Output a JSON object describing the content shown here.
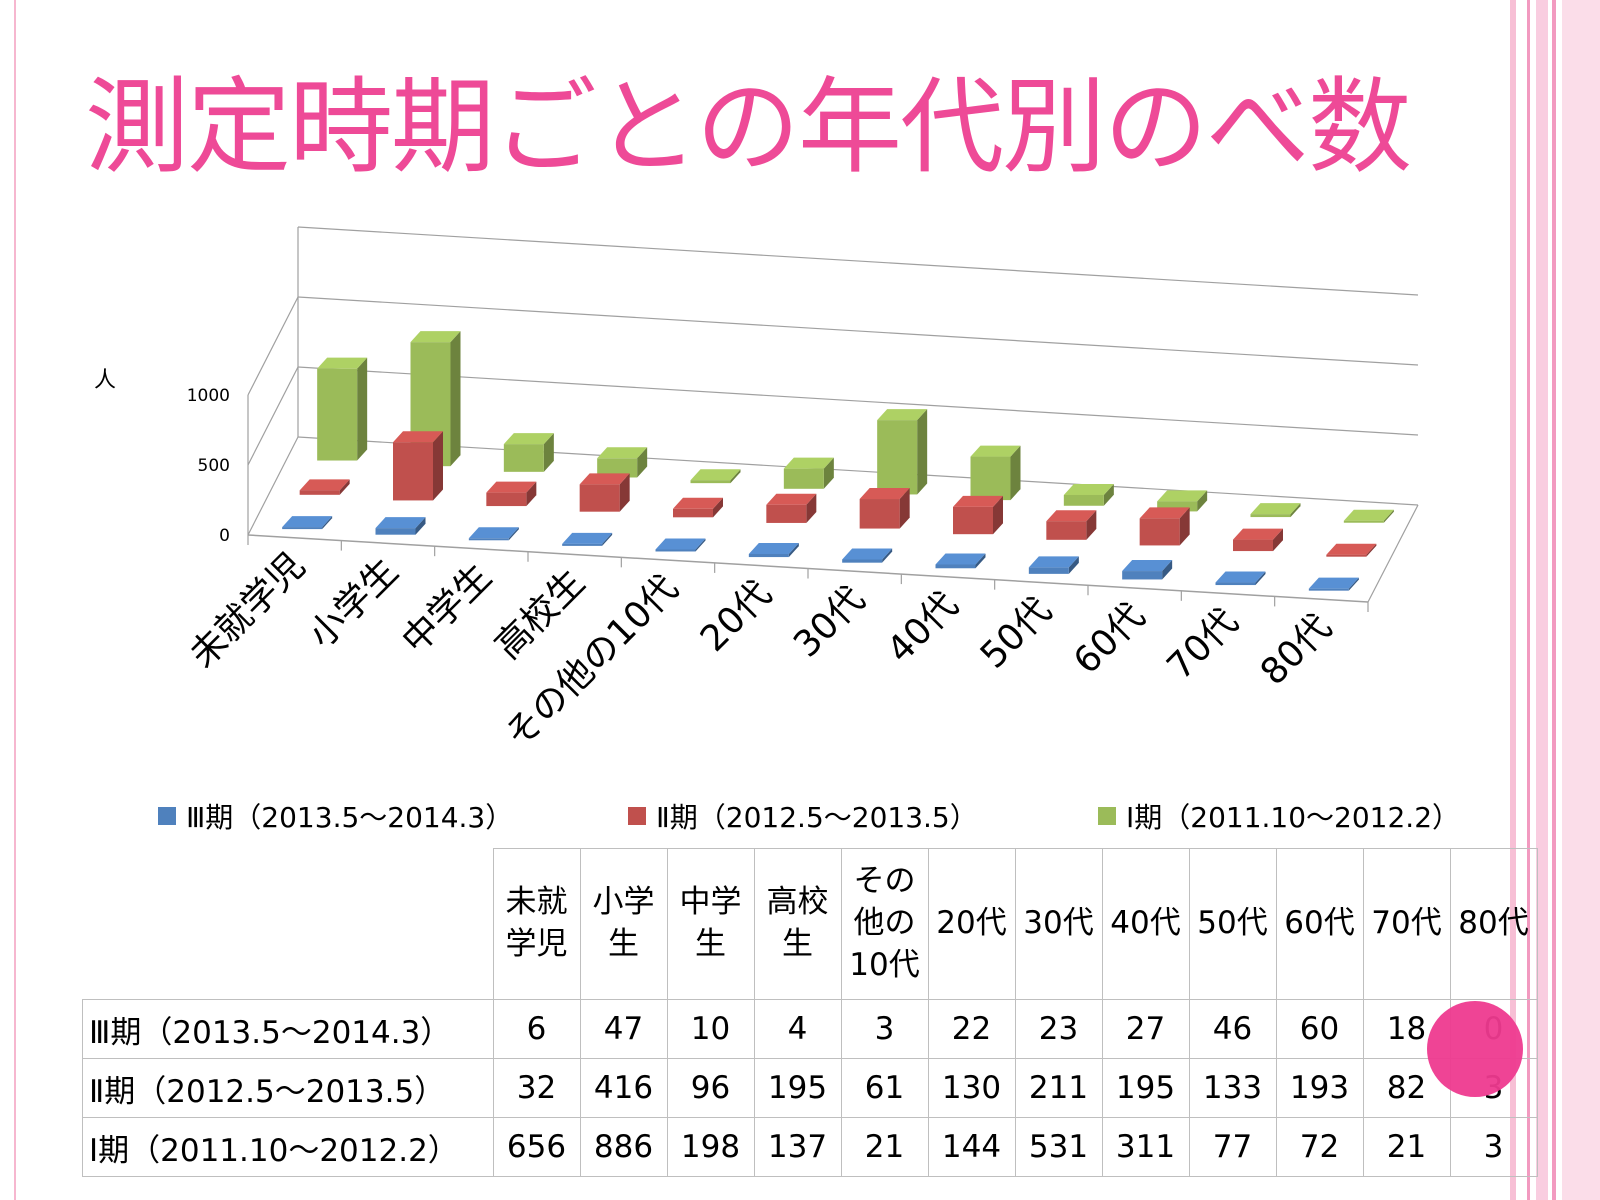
{
  "slide": {
    "title": "測定時期ごとの年代別のべ数",
    "accent_color": "#ee4a97"
  },
  "chart_data": {
    "type": "bar",
    "title": "",
    "ylabel": "人",
    "ylim": [
      0,
      1000
    ],
    "yticks": [
      0,
      500,
      1000
    ],
    "categories": [
      "未就学児",
      "小学生",
      "中学生",
      "高校生",
      "その他の10代",
      "20代",
      "30代",
      "40代",
      "50代",
      "60代",
      "70代",
      "80代"
    ],
    "series": [
      {
        "name": "Ⅲ期（2013.5～2014.3）",
        "values": [
          6,
          47,
          10,
          4,
          3,
          22,
          23,
          27,
          46,
          60,
          18,
          0
        ],
        "color": "#4f81bd"
      },
      {
        "name": "Ⅱ期（2012.5～2013.5）",
        "values": [
          32,
          416,
          96,
          195,
          61,
          130,
          211,
          195,
          133,
          193,
          82,
          3
        ],
        "color": "#c0504d"
      },
      {
        "name": "Ⅰ期（2011.10～2012.2）",
        "values": [
          656,
          886,
          198,
          137,
          21,
          144,
          531,
          311,
          77,
          72,
          21,
          3
        ],
        "color": "#9bbb59"
      }
    ]
  },
  "table": {
    "headers": [
      "未就\n学児",
      "小学\n生",
      "中学\n生",
      "高校\n生",
      "その\n他の\n10代",
      "20代",
      "30代",
      "40代",
      "50代",
      "60代",
      "70代",
      "80代"
    ],
    "rows": [
      {
        "label": "Ⅲ期（2013.5～2014.3）",
        "cells": [
          "6",
          "47",
          "10",
          "4",
          "3",
          "22",
          "23",
          "27",
          "46",
          "60",
          "18",
          "0"
        ]
      },
      {
        "label": "Ⅱ期（2012.5～2013.5）",
        "cells": [
          "32",
          "416",
          "96",
          "195",
          "61",
          "130",
          "211",
          "195",
          "133",
          "193",
          "82",
          "3"
        ]
      },
      {
        "label": "Ⅰ期（2011.10～2012.2）",
        "cells": [
          "656",
          "886",
          "198",
          "137",
          "21",
          "144",
          "531",
          "311",
          "77",
          "72",
          "21",
          "3"
        ]
      }
    ]
  }
}
